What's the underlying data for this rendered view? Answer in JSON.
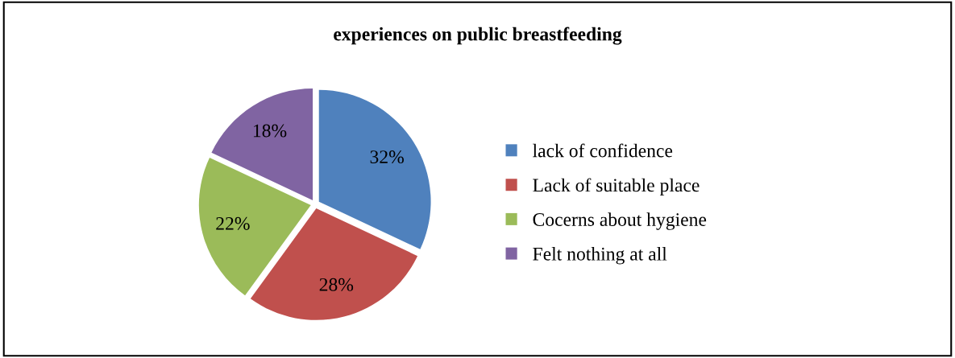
{
  "chart_data": {
    "type": "pie",
    "title": "experiences on public breastfeeding",
    "categories": [
      "lack of confidence",
      "Lack of suitable place",
      "Cocerns about hygiene",
      "Felt nothing at all"
    ],
    "values": [
      32,
      28,
      22,
      18
    ],
    "value_labels": [
      "32%",
      "28%",
      "22%",
      "18%"
    ],
    "colors": [
      "#4f81bd",
      "#c0504d",
      "#9bbb59",
      "#8064a2"
    ],
    "legend": "right"
  }
}
